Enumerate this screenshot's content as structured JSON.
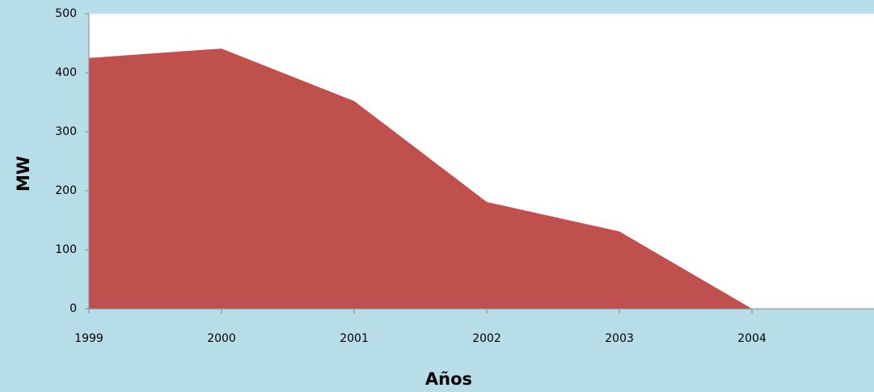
{
  "chart_data": {
    "type": "area",
    "x": [
      1999,
      2000,
      2001,
      2002,
      2003,
      2004
    ],
    "values": [
      425,
      441,
      352,
      181,
      131,
      0
    ],
    "color": "#c0504d",
    "xlabel": "Años",
    "ylabel": "MW",
    "xlim": [
      1999,
      2004.92
    ],
    "xticks": [
      1999,
      2000,
      2001,
      2002,
      2003,
      2004
    ],
    "ylim": [
      0,
      500
    ],
    "yticks": [
      0,
      100,
      200,
      300,
      400,
      500
    ]
  }
}
